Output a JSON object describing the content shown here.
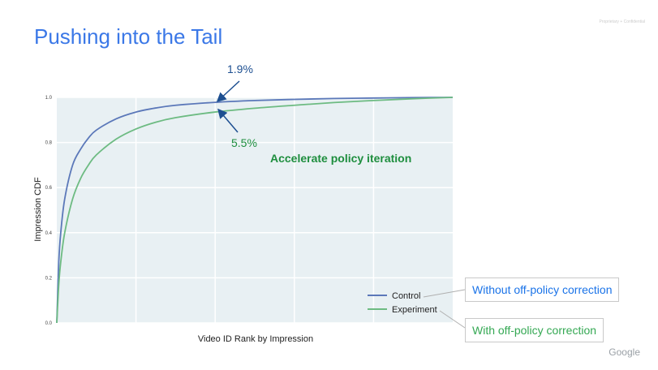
{
  "slide": {
    "title": "Pushing into the Tail",
    "confidential_label": "Proprietary + Confidential",
    "brand": "Google"
  },
  "callouts": {
    "control": "Without off-policy correction",
    "experiment": "With off-policy correction"
  },
  "colors": {
    "title": "#3b78e7",
    "plot_bg": "#e8f0f3",
    "grid": "#ffffff",
    "control": "#5b78b9",
    "experiment": "#6dbb82",
    "annotation_dark": "#1d4f91",
    "annotation_green": "#1e8e3e"
  },
  "chart_data": {
    "type": "line",
    "title": "",
    "xlabel": "Video ID Rank by Impression",
    "ylabel": "Impression CDF",
    "xlim": [
      0,
      1
    ],
    "ylim": [
      0,
      1.0
    ],
    "yticks": [
      "0.0",
      "0.2",
      "0.4",
      "0.6",
      "0.8",
      "1.0"
    ],
    "x": [
      0,
      0.005,
      0.01,
      0.02,
      0.04,
      0.06,
      0.08,
      0.1,
      0.15,
      0.2,
      0.25,
      0.3,
      0.4,
      0.5,
      0.6,
      0.7,
      0.8,
      0.9,
      1.0
    ],
    "series": [
      {
        "name": "Control",
        "values": [
          0,
          0.27,
          0.4,
          0.55,
          0.7,
          0.77,
          0.82,
          0.855,
          0.905,
          0.935,
          0.953,
          0.965,
          0.978,
          0.986,
          0.991,
          0.995,
          0.997,
          0.999,
          1.0
        ]
      },
      {
        "name": "Experiment",
        "values": [
          0,
          0.17,
          0.27,
          0.4,
          0.55,
          0.64,
          0.7,
          0.745,
          0.815,
          0.86,
          0.89,
          0.91,
          0.935,
          0.952,
          0.965,
          0.977,
          0.986,
          0.994,
          1.0
        ]
      }
    ],
    "legend": "bottom-right",
    "grid": true,
    "annotations": [
      {
        "text": "1.9%",
        "target_x": 0.4,
        "target_series": "Control"
      },
      {
        "text": "5.5%",
        "target_x": 0.4,
        "target_series": "Experiment"
      },
      {
        "text": "Accelerate policy iteration"
      }
    ]
  }
}
